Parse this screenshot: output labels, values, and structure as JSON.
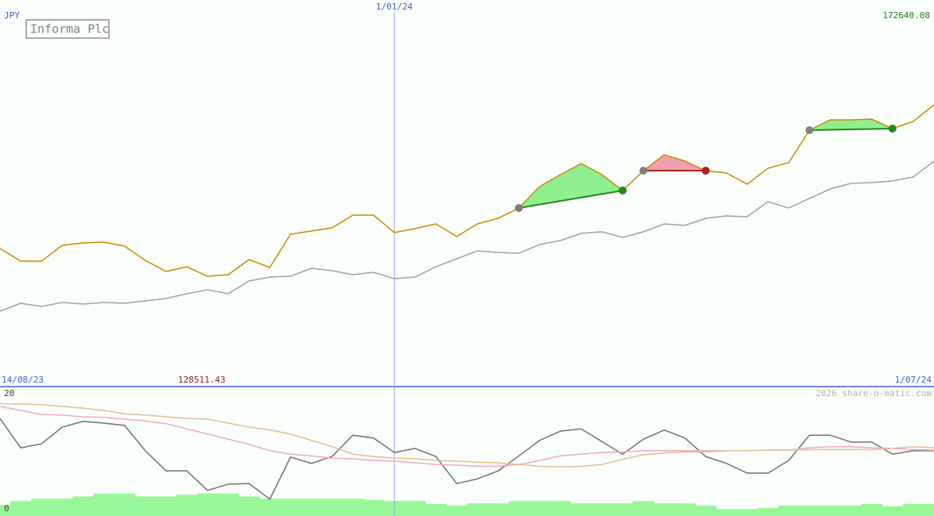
{
  "chart_data": {
    "type": "line",
    "title": "Informa Plc",
    "currency": "JPY",
    "watermark": "2026 share-o-matic.com",
    "x_start_label": "14/08/23",
    "x_end_label": "1/07/24",
    "xticks": [
      {
        "value": 19,
        "label": "1/01/24"
      }
    ],
    "ylim": [
      128511.43,
      172640.08
    ],
    "series": [
      {
        "color": "#cc8800",
        "values": [
          144531,
          142996,
          142996,
          144915,
          145203,
          145299,
          144819,
          143092,
          141749,
          142325,
          141174,
          141366,
          143188,
          142229,
          146258,
          146642,
          147025,
          148560,
          148560,
          146450,
          146930,
          147505,
          145970,
          147505,
          148177,
          149424,
          152014,
          153453,
          154796,
          153453,
          151534,
          153932,
          155851,
          155084,
          153932,
          153645,
          152302,
          154220,
          154892,
          158825,
          160072,
          160072,
          160168,
          159017,
          159880,
          161895
        ]
      },
      {
        "color": "#a0a0a0",
        "values": [
          136953,
          137912,
          137528,
          138008,
          137816,
          138008,
          137912,
          138200,
          138488,
          139063,
          139543,
          139063,
          140598,
          141078,
          141174,
          142133,
          141845,
          141366,
          141653,
          140886,
          141078,
          142325,
          143284,
          144244,
          144052,
          143956,
          145011,
          145491,
          146354,
          146546,
          145874,
          146546,
          147505,
          147313,
          148177,
          148464,
          148369,
          150191,
          149424,
          150575,
          151726,
          152398,
          152494,
          152685,
          153165,
          155084
        ]
      }
    ],
    "signals": [
      {
        "start": 25,
        "end": 30,
        "color": "#228822",
        "fill": "#90f090"
      },
      {
        "start": 31,
        "end": 34,
        "color": "#aa2222",
        "fill": "#f0a0b0"
      },
      {
        "start": 39,
        "end": 43,
        "color": "#228822",
        "fill": "#90f090"
      }
    ],
    "indicator": {
      "ylim": [
        0,
        20
      ],
      "yticks": [
        0,
        20
      ],
      "series": [
        {
          "color": "#707070",
          "values": [
            15.7,
            10.6,
            11.3,
            14.2,
            15.2,
            14.9,
            14.5,
            10.1,
            6.6,
            6.6,
            3.2,
            4.3,
            4.4,
            1.7,
            9.0,
            7.9,
            9.1,
            12.8,
            12.3,
            9.8,
            10.5,
            9.1,
            4.4,
            5.2,
            6.6,
            9.2,
            11.9,
            13.5,
            13.9,
            11.7,
            9.5,
            12.1,
            13.7,
            12.3,
            9.1,
            7.9,
            6.2,
            6.2,
            8.4,
            12.8,
            12.8,
            11.6,
            11.6,
            9.5,
            10.1,
            10.1
          ]
        },
        {
          "color": "#f4a6c0",
          "values": [
            17.8,
            17.1,
            16.4,
            16.3,
            16.0,
            15.9,
            15.6,
            15.3,
            14.8,
            13.9,
            13.0,
            12.1,
            11.2,
            10.1,
            9.5,
            9.2,
            8.8,
            8.7,
            8.4,
            8.3,
            8.0,
            7.7,
            7.6,
            7.4,
            7.4,
            7.7,
            8.4,
            9.2,
            9.5,
            9.8,
            9.9,
            10.1,
            10.1,
            10.1,
            10.1,
            10.1,
            10.1,
            10.2,
            10.2,
            10.6,
            10.8,
            10.8,
            10.6,
            10.5,
            10.3,
            10.2
          ]
        },
        {
          "color": "#e0c090",
          "values": [
            18.3,
            18.2,
            18.1,
            17.8,
            17.5,
            17.1,
            16.5,
            16.3,
            16.0,
            15.7,
            15.6,
            14.9,
            14.2,
            13.7,
            13.0,
            11.9,
            10.8,
            9.5,
            9.1,
            8.8,
            8.7,
            8.4,
            8.3,
            8.1,
            8.0,
            7.7,
            7.4,
            7.3,
            7.4,
            7.7,
            8.6,
            9.4,
            9.7,
            9.9,
            9.9,
            10.1,
            10.1,
            10.2,
            10.2,
            10.3,
            10.3,
            10.3,
            10.3,
            10.5,
            10.8,
            10.6
          ]
        }
      ],
      "volume": {
        "color": "#98f898",
        "values": [
          1.9,
          2.6,
          3.0,
          3.0,
          3.4,
          3.9,
          3.9,
          3.4,
          3.4,
          3.7,
          3.9,
          3.9,
          3.4,
          3.0,
          3.0,
          3.0,
          3.0,
          3.0,
          2.8,
          2.6,
          2.6,
          2.1,
          1.8,
          2.2,
          2.2,
          2.6,
          2.6,
          2.6,
          2.2,
          2.2,
          2.2,
          2.6,
          2.2,
          2.2,
          1.8,
          1.2,
          1.2,
          1.4,
          1.8,
          1.8,
          1.8,
          1.8,
          2.1,
          1.7,
          2.1,
          2.1
        ]
      }
    }
  }
}
